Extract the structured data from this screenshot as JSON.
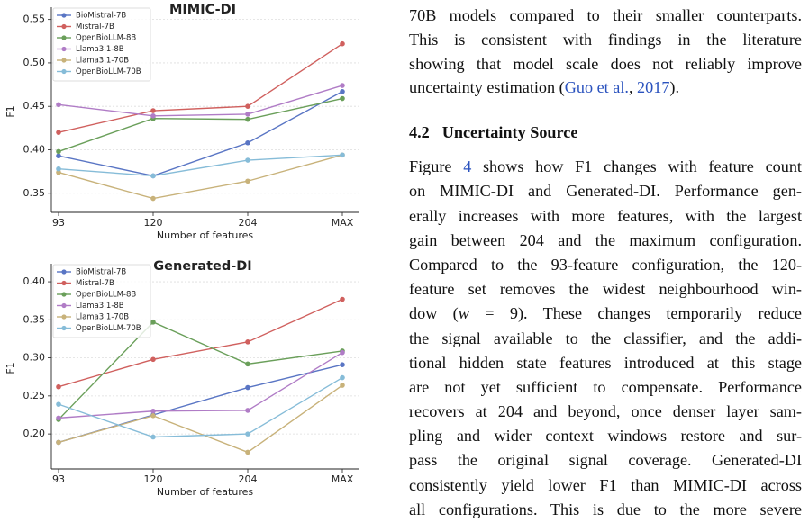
{
  "chart_data": [
    {
      "type": "line",
      "title": "MIMIC-DI",
      "x_label": "Number of features",
      "y_label": "F1",
      "categories": [
        "93",
        "120",
        "204",
        "MAX"
      ],
      "ylim": [
        0.328,
        0.56
      ],
      "yticks": [
        0.35,
        {
          "value": 0.4,
          "label": "0.40"
        },
        0.45,
        {
          "value": 0.5,
          "label": "0.50"
        },
        0.55
      ],
      "grid": true,
      "legend": "upper left",
      "series": [
        {
          "name": "BioMistral-7B",
          "color": "#5975c4",
          "values": [
            0.393,
            0.37,
            0.408,
            0.467
          ]
        },
        {
          "name": "Mistral-7B",
          "color": "#d0605e",
          "values": [
            0.42,
            0.445,
            0.45,
            0.522
          ]
        },
        {
          "name": "OpenBioLLM-8B",
          "color": "#6a9f5a",
          "values": [
            0.398,
            0.436,
            0.435,
            0.459
          ]
        },
        {
          "name": "Llama3.1-8B",
          "color": "#b07cc6",
          "values": [
            0.452,
            0.439,
            0.441,
            0.474
          ]
        },
        {
          "name": "Llama3.1-70B",
          "color": "#c8b27a",
          "values": [
            0.374,
            0.344,
            0.364,
            0.394
          ]
        },
        {
          "name": "OpenBioLLM-70B",
          "color": "#86bcd8",
          "values": [
            0.378,
            0.37,
            0.388,
            0.394
          ]
        }
      ]
    },
    {
      "type": "line",
      "title": "Generated-DI",
      "x_label": "Number of features",
      "y_label": "F1",
      "categories": [
        "93",
        "120",
        "204",
        "MAX"
      ],
      "ylim": [
        0.154,
        0.419
      ],
      "yticks": [
        {
          "value": 0.2,
          "label": "0.20"
        },
        0.25,
        {
          "value": 0.3,
          "label": "0.30"
        },
        0.35,
        {
          "value": 0.4,
          "label": "0.40"
        }
      ],
      "grid": true,
      "legend": "upper left",
      "series": [
        {
          "name": "BioMistral-7B",
          "color": "#5975c4",
          "values": [
            0.189,
            0.225,
            0.261,
            0.291
          ]
        },
        {
          "name": "Mistral-7B",
          "color": "#d0605e",
          "values": [
            0.262,
            0.298,
            0.321,
            0.377
          ]
        },
        {
          "name": "OpenBioLLM-8B",
          "color": "#6a9f5a",
          "values": [
            0.219,
            0.347,
            0.292,
            0.309
          ]
        },
        {
          "name": "Llama3.1-8B",
          "color": "#b07cc6",
          "values": [
            0.221,
            0.23,
            0.231,
            0.307
          ]
        },
        {
          "name": "Llama3.1-70B",
          "color": "#c8b27a",
          "values": [
            0.189,
            0.224,
            0.176,
            0.264
          ]
        },
        {
          "name": "OpenBioLLM-70B",
          "color": "#86bcd8",
          "values": [
            0.239,
            0.196,
            0.2,
            0.274
          ]
        }
      ]
    }
  ],
  "text": {
    "para1": [
      "70B models compared to their smaller counterparts.",
      "This is consistent with findings in the literature",
      "showing that model scale does not reliably improve",
      [
        "uncertainty estimation (",
        "Guo et al.",
        ", ",
        "2017",
        ")."
      ]
    ],
    "section": {
      "number": "4.2",
      "title": "Uncertainty Source"
    },
    "para2": [
      [
        "Figure ",
        "4",
        " shows how F1 changes with feature count"
      ],
      "on MIMIC-DI and Generated-DI. Performance gen-",
      "erally increases with more features, with the largest",
      "gain between 204 and the maximum configuration.",
      "Compared to the 93-feature configuration, the 120-",
      "feature set removes the widest neighbourhood win-",
      [
        "dow (",
        "w",
        " = 9). These changes temporarily reduce"
      ],
      "the signal available to the classifier, and the addi-",
      "tional hidden state features introduced at this stage",
      "are not yet sufficient to compensate. Performance",
      "recovers at 204 and beyond, once denser layer sam-",
      "pling and wider context windows restore and sur-",
      "pass the original signal coverage. Generated-DI",
      "consistently yield lower F1 than MIMIC-DI across",
      "all configurations. This is due to the more severe"
    ]
  }
}
